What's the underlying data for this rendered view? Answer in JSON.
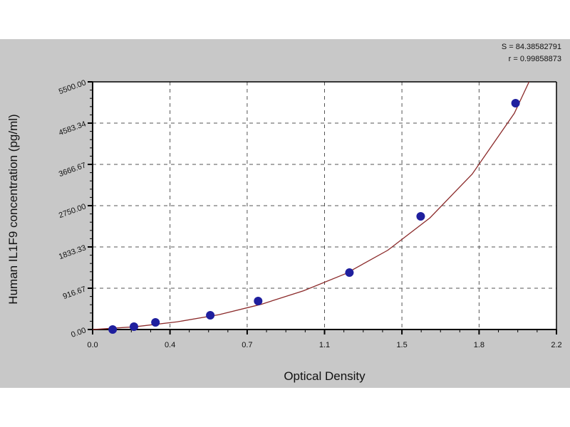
{
  "stats": {
    "s_line": "S = 84.38582791",
    "r_line": "r = 0.99858873"
  },
  "chart_data": {
    "type": "scatter",
    "title": "",
    "xlabel": "Optical Density",
    "ylabel": "Human IL1F9 concentration (pg/ml)",
    "xlim": [
      0,
      2.2
    ],
    "ylim": [
      0,
      5500
    ],
    "grid": true,
    "x_ticks": [
      0,
      0.367,
      0.733,
      1.1,
      1.467,
      1.833,
      2.2
    ],
    "x_tick_labels": [
      "0.0",
      "0.4",
      "0.7",
      "1.1",
      "1.5",
      "1.8",
      "2.2"
    ],
    "y_ticks": [
      0,
      916.67,
      1833.33,
      2750,
      3666.67,
      4583.34,
      5500
    ],
    "y_tick_labels": [
      "0.00",
      "916.67",
      "1833.33",
      "2750.00",
      "3666.67",
      "4583.34",
      "5500.00"
    ],
    "points": [
      {
        "x": 0.095,
        "y": 0
      },
      {
        "x": 0.196,
        "y": 63
      },
      {
        "x": 0.298,
        "y": 158
      },
      {
        "x": 0.558,
        "y": 316
      },
      {
        "x": 0.785,
        "y": 632
      },
      {
        "x": 1.218,
        "y": 1264
      },
      {
        "x": 1.556,
        "y": 2513
      },
      {
        "x": 2.006,
        "y": 5026
      }
    ],
    "fit_curve": [
      [
        0,
        0
      ],
      [
        0.2,
        60
      ],
      [
        0.4,
        170
      ],
      [
        0.6,
        330
      ],
      [
        0.8,
        560
      ],
      [
        1.0,
        860
      ],
      [
        1.2,
        1240
      ],
      [
        1.4,
        1760
      ],
      [
        1.6,
        2480
      ],
      [
        1.8,
        3450
      ],
      [
        2.0,
        4800
      ],
      [
        2.07,
        5500
      ]
    ],
    "colors": {
      "points": "#1f1f9e",
      "curve": "#8b2a2a",
      "background": "#c8c8c8",
      "plot": "#ffffff"
    }
  }
}
